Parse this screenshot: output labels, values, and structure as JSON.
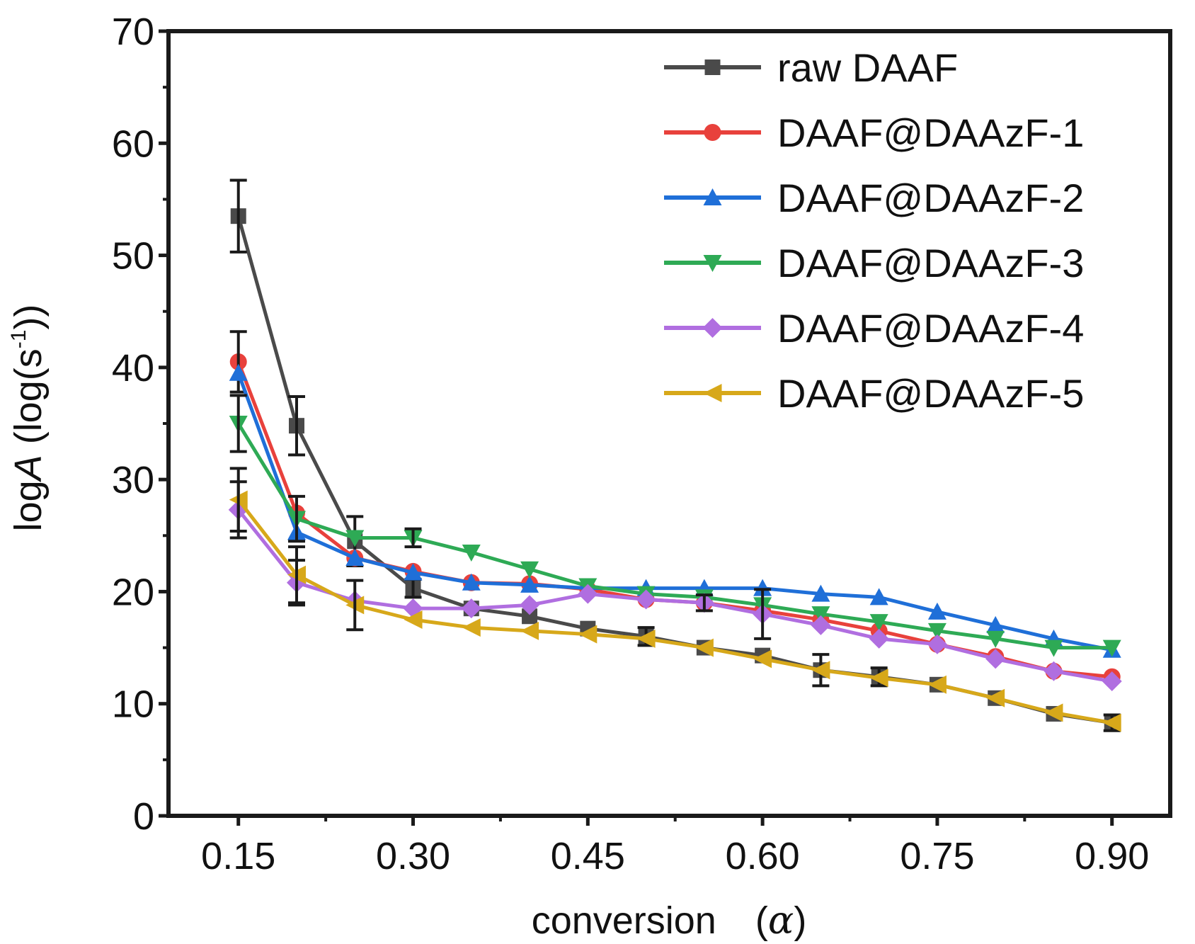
{
  "chart_data": {
    "type": "line",
    "x_axis": {
      "label_prefix": "conversion",
      "label_symbol": "α",
      "ticks": [
        "0.15",
        "0.30",
        "0.45",
        "0.60",
        "0.75",
        "0.90"
      ],
      "range": [
        0.09,
        0.95
      ]
    },
    "y_axis": {
      "label_prefix": "log",
      "label_italic": "A",
      "label_unit_open": " (log(s",
      "label_unit_sup": "-1",
      "label_unit_close": "))",
      "ticks": [
        "0",
        "10",
        "20",
        "30",
        "40",
        "50",
        "60",
        "70"
      ],
      "range": [
        0,
        70
      ]
    },
    "grid": false,
    "legend_position": "top-right",
    "x": [
      0.15,
      0.2,
      0.25,
      0.3,
      0.35,
      0.4,
      0.45,
      0.5,
      0.55,
      0.6,
      0.65,
      0.7,
      0.75,
      0.8,
      0.85,
      0.9
    ],
    "series": [
      {
        "name": "raw DAAF",
        "color": "#4a4a4a",
        "marker": "square",
        "values": [
          53.5,
          34.8,
          24.5,
          20.3,
          18.5,
          17.8,
          16.7,
          16.0,
          15.0,
          14.3,
          13.0,
          12.4,
          11.7,
          10.5,
          9.1,
          8.3
        ],
        "errors": [
          3.2,
          2.6,
          2.2,
          0.8,
          0,
          0,
          0,
          0.8,
          0,
          0,
          1.4,
          0.8,
          0,
          0,
          0,
          0.7
        ]
      },
      {
        "name": "DAAF@DAAzF-1",
        "color": "#e8413c",
        "marker": "circle",
        "values": [
          40.5,
          27.0,
          23.0,
          21.8,
          20.8,
          20.7,
          20.2,
          19.3,
          19.0,
          18.3,
          17.5,
          16.5,
          15.3,
          14.2,
          12.9,
          12.4
        ],
        "errors": [
          2.7,
          0,
          0,
          0,
          0,
          0,
          0,
          0,
          0,
          0,
          0,
          0,
          0,
          0,
          0,
          0
        ]
      },
      {
        "name": "DAAF@DAAzF-2",
        "color": "#1f6fd8",
        "marker": "triangle-up",
        "values": [
          39.5,
          25.3,
          23.0,
          21.7,
          20.8,
          20.6,
          20.3,
          20.3,
          20.3,
          20.3,
          19.8,
          19.5,
          18.2,
          17.0,
          15.8,
          14.8
        ],
        "errors": [
          0,
          0,
          0,
          0,
          0,
          0,
          0,
          0,
          0,
          0,
          0,
          0,
          0,
          0,
          0,
          0
        ]
      },
      {
        "name": "DAAF@DAAzF-3",
        "color": "#2eaa55",
        "marker": "triangle-down",
        "values": [
          35.0,
          26.5,
          24.8,
          24.8,
          23.5,
          22.0,
          20.5,
          19.8,
          19.5,
          18.8,
          18.0,
          17.3,
          16.5,
          15.8,
          15.0,
          15.0
        ],
        "errors": [
          2.5,
          2.0,
          0,
          0.8,
          0,
          0,
          0,
          0,
          0,
          0,
          0,
          0,
          0,
          0,
          0,
          0
        ]
      },
      {
        "name": "DAAF@DAAzF-4",
        "color": "#b06ee0",
        "marker": "diamond",
        "values": [
          27.3,
          20.8,
          19.2,
          18.5,
          18.5,
          18.8,
          19.8,
          19.3,
          19.0,
          18.0,
          17.0,
          15.8,
          15.3,
          14.0,
          12.9,
          12.0
        ],
        "errors": [
          2.5,
          2.0,
          0,
          0,
          0,
          0,
          0,
          0,
          0.7,
          2.2,
          0,
          0,
          0,
          0,
          0,
          0
        ]
      },
      {
        "name": "DAAF@DAAzF-5",
        "color": "#d7a81a",
        "marker": "triangle-left",
        "values": [
          28.2,
          21.5,
          18.8,
          17.5,
          16.8,
          16.5,
          16.2,
          15.8,
          15.0,
          14.0,
          13.0,
          12.3,
          11.7,
          10.5,
          9.2,
          8.3
        ],
        "errors": [
          2.8,
          2.5,
          2.2,
          0,
          0,
          0,
          0,
          0,
          0,
          0,
          0,
          0,
          0,
          0,
          0,
          0
        ]
      }
    ]
  }
}
